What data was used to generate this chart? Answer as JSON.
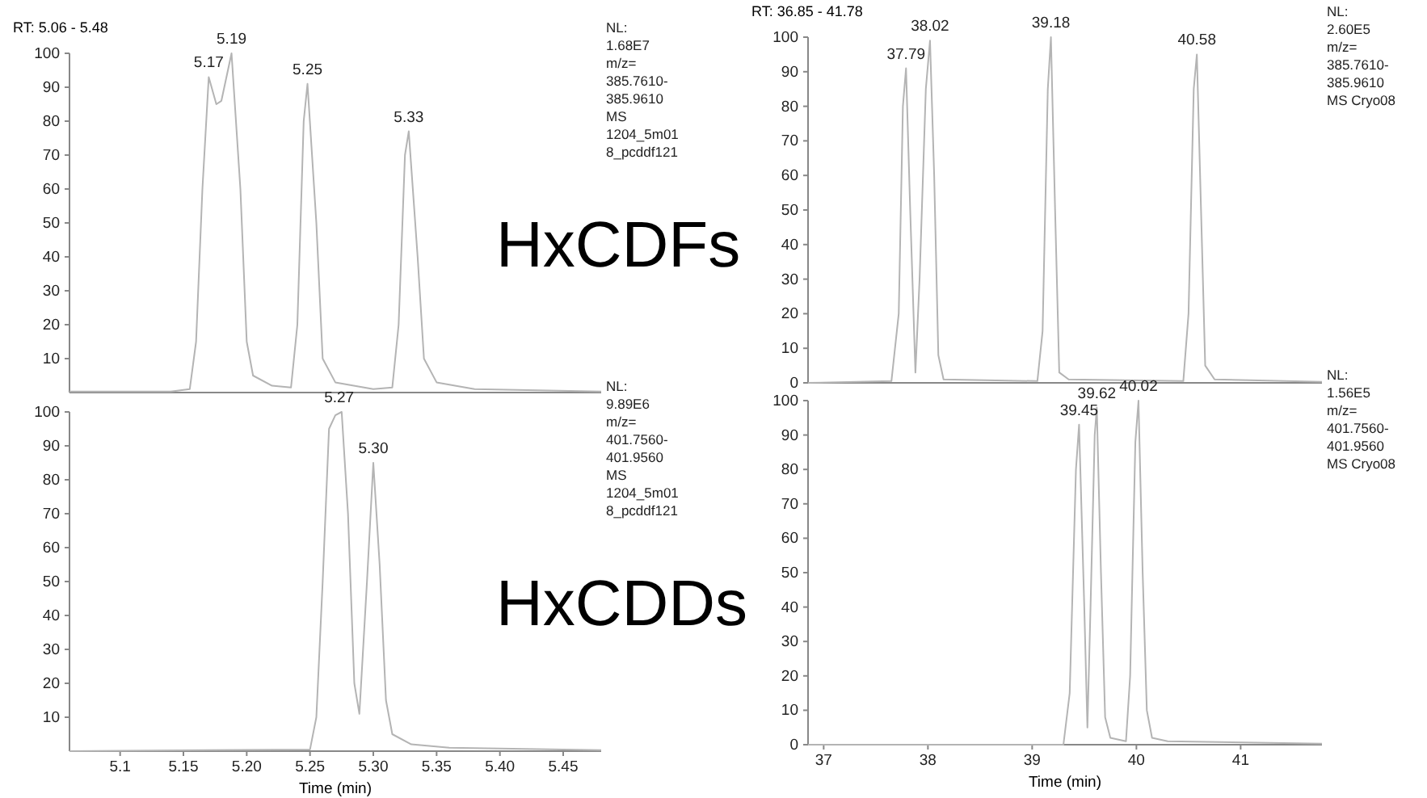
{
  "chart_data": [
    {
      "type": "line",
      "title": "RT: 5.06 - 5.48",
      "xlim": [
        5.06,
        5.48
      ],
      "ylim": [
        0,
        100
      ],
      "yticks": [
        10,
        20,
        30,
        40,
        50,
        60,
        70,
        80,
        90,
        100
      ],
      "tick_labels": "y",
      "series": [
        {
          "color": "#b4b4b4",
          "x": [
            5.06,
            5.14,
            5.155,
            5.16,
            5.165,
            5.17,
            5.176,
            5.18,
            5.188,
            5.195,
            5.2,
            5.205,
            5.22,
            5.235,
            5.24,
            5.245,
            5.248,
            5.255,
            5.26,
            5.27,
            5.3,
            5.315,
            5.32,
            5.325,
            5.328,
            5.335,
            5.34,
            5.35,
            5.38,
            5.48
          ],
          "values": [
            0.3,
            0.3,
            1,
            15,
            60,
            93,
            85,
            86,
            100,
            60,
            15,
            5,
            2,
            1.5,
            20,
            80,
            91,
            50,
            10,
            3,
            1,
            1.5,
            20,
            70,
            77,
            40,
            10,
            3,
            1,
            0.3
          ]
        }
      ],
      "annotations": [
        {
          "text": "5.17",
          "x": 5.17,
          "y": 93
        },
        {
          "text": "5.19",
          "x": 5.188,
          "y": 100
        },
        {
          "text": "5.25",
          "x": 5.248,
          "y": 91
        },
        {
          "text": "5.33",
          "x": 5.328,
          "y": 77
        },
        "NL:\n1.68E7\nm/z=\n385.7610-\n385.9610\nMS\n1204_5m01\n8_pcddf121",
        "HxCDFs"
      ]
    },
    {
      "type": "line",
      "xlabel": "Time (min)",
      "xlim": [
        5.06,
        5.48
      ],
      "xticks": [
        5.1,
        {
          "value": 5.15,
          "label": "5.15"
        },
        {
          "value": 5.2,
          "label": "5.20"
        },
        5.25,
        {
          "value": 5.3,
          "label": "5.30"
        },
        5.35,
        {
          "value": 5.4,
          "label": "5.40"
        },
        5.45
      ],
      "ylim": [
        0,
        100
      ],
      "yticks": [
        10,
        20,
        30,
        40,
        50,
        60,
        70,
        80,
        90,
        100
      ],
      "series": [
        {
          "color": "#b4b4b4",
          "x": [
            5.06,
            5.25,
            5.255,
            5.26,
            5.265,
            5.27,
            5.275,
            5.28,
            5.285,
            5.289,
            5.295,
            5.3,
            5.305,
            5.31,
            5.315,
            5.33,
            5.36,
            5.48
          ],
          "values": [
            0,
            0.5,
            10,
            50,
            95,
            99,
            100,
            70,
            20,
            11,
            50,
            85,
            55,
            15,
            5,
            2,
            1,
            0.3
          ]
        }
      ],
      "annotations": [
        {
          "text": "5.27",
          "x": 5.273,
          "y": 100
        },
        {
          "text": "5.30",
          "x": 5.3,
          "y": 85
        },
        "NL:\n9.89E6\nm/z=\n401.7560-\n401.9560\nMS\n1204_5m01\n8_pcddf121",
        "HxCDDs"
      ]
    },
    {
      "type": "line",
      "title": "RT: 36.85 - 41.78",
      "xlim": [
        36.85,
        41.78
      ],
      "ylim": [
        0,
        100
      ],
      "yticks": [
        0,
        10,
        20,
        30,
        40,
        50,
        60,
        70,
        80,
        90,
        100
      ],
      "tick_labels": "y",
      "series": [
        {
          "color": "#b4b4b4",
          "x": [
            36.85,
            37.65,
            37.72,
            37.76,
            37.79,
            37.83,
            37.88,
            37.92,
            37.98,
            38.02,
            38.06,
            38.1,
            38.15,
            39.05,
            39.1,
            39.15,
            39.18,
            39.22,
            39.26,
            39.35,
            40.45,
            40.5,
            40.55,
            40.58,
            40.62,
            40.66,
            40.75,
            41.78
          ],
          "values": [
            0,
            0.5,
            20,
            80,
            91,
            50,
            3,
            30,
            85,
            99,
            60,
            8,
            1,
            0.5,
            15,
            85,
            100,
            50,
            3,
            1,
            0.5,
            20,
            85,
            95,
            50,
            5,
            1,
            0.3
          ]
        }
      ],
      "annotations": [
        {
          "text": "37.79",
          "x": 37.79,
          "y": 91
        },
        {
          "text": "38.02",
          "x": 38.02,
          "y": 99
        },
        {
          "text": "39.18",
          "x": 39.18,
          "y": 100
        },
        {
          "text": "40.58",
          "x": 40.58,
          "y": 95
        },
        "NL:\n2.60E5\nm/z=\n385.7610-\n385.9610\nMS Cryo08"
      ]
    },
    {
      "type": "line",
      "xlabel": "Time (min)",
      "xlim": [
        36.85,
        41.78
      ],
      "xticks": [
        37,
        38,
        39,
        40,
        41
      ],
      "ylim": [
        0,
        100
      ],
      "yticks": [
        0,
        10,
        20,
        30,
        40,
        50,
        60,
        70,
        80,
        90,
        100
      ],
      "series": [
        {
          "color": "#b4b4b4",
          "x": [
            36.85,
            39.3,
            39.36,
            39.42,
            39.45,
            39.5,
            39.53,
            39.56,
            39.6,
            39.62,
            39.66,
            39.7,
            39.75,
            39.9,
            39.94,
            39.99,
            40.02,
            40.06,
            40.1,
            40.15,
            40.3,
            41.78
          ],
          "values": [
            0,
            0,
            15,
            80,
            93,
            40,
            5,
            40,
            90,
            98,
            50,
            8,
            2,
            1,
            20,
            88,
            100,
            50,
            10,
            2,
            1,
            0.3
          ]
        }
      ],
      "annotations": [
        {
          "text": "39.45",
          "x": 39.45,
          "y": 93
        },
        {
          "text": "39.62",
          "x": 39.62,
          "y": 98
        },
        {
          "text": "40.02",
          "x": 40.02,
          "y": 100
        },
        "NL:\n1.56E5\nm/z=\n401.7560-\n401.9560\nMS Cryo08"
      ]
    }
  ]
}
